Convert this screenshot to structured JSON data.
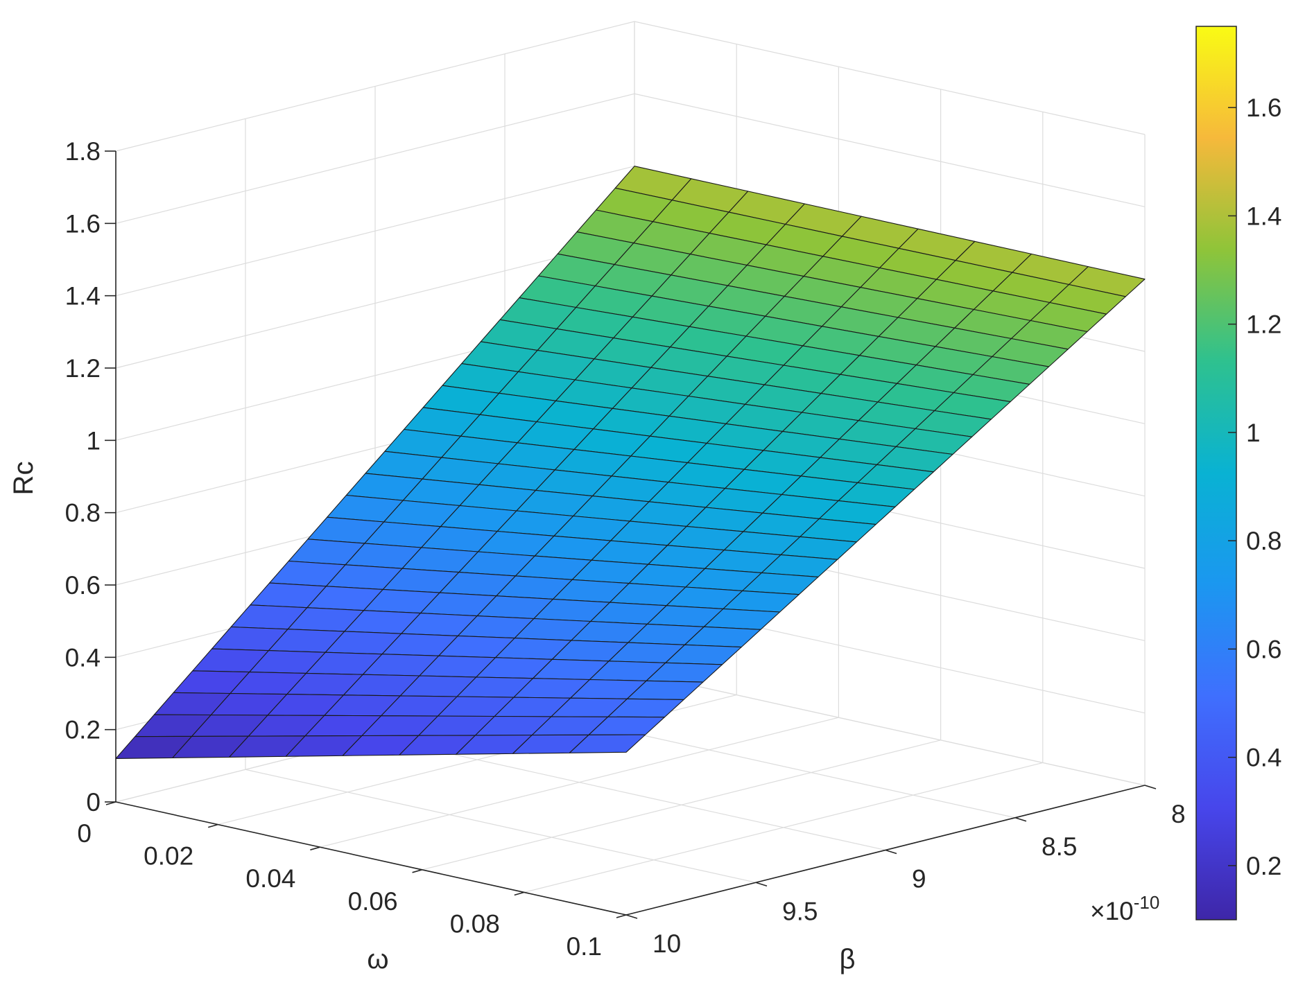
{
  "chart_data": {
    "type": "surface",
    "zlabel": "Rc",
    "xlabel": "ω",
    "ylabel": "β",
    "x_ticks": [
      "0",
      "0.02",
      "0.04",
      "0.06",
      "0.08",
      "0.1"
    ],
    "y_ticks": [
      "10",
      "9.5",
      "9",
      "8.5",
      "8"
    ],
    "y_exponent": "×10",
    "y_exponent_power": "-10",
    "z_ticks": [
      "0",
      "0.2",
      "0.4",
      "0.6",
      "0.8",
      "1",
      "1.2",
      "1.4",
      "1.6",
      "1.8"
    ],
    "colorbar_ticks": [
      "0.2",
      "0.4",
      "0.6",
      "0.8",
      "1",
      "1.2",
      "1.4",
      "1.6"
    ],
    "xlim": [
      0,
      0.1
    ],
    "ylim": [
      8e-10,
      1e-09
    ],
    "zlim": [
      0,
      1.8
    ],
    "clim": [
      0.1,
      1.75
    ],
    "colormap": "parula",
    "grid": true,
    "mesh": {
      "x_segments": 9,
      "y_segments": 27
    },
    "surface_corners": [
      {
        "omega": 0,
        "beta": 1e-09,
        "Rc": 0.12
      },
      {
        "omega": 0.1,
        "beta": 1e-09,
        "Rc": 0.45
      },
      {
        "omega": 0,
        "beta": 8e-10,
        "Rc": 1.4
      },
      {
        "omega": 0.1,
        "beta": 8e-10,
        "Rc": 1.4
      }
    ]
  }
}
